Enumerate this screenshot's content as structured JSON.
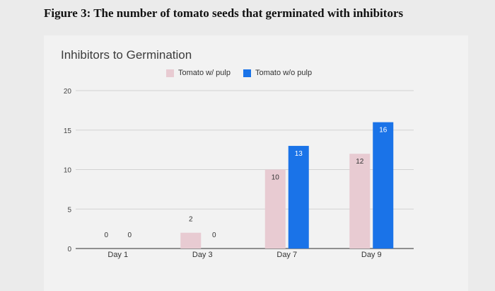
{
  "figure_caption": "Figure 3: The number of tomato seeds that germinated with inhibitors",
  "chart_data": {
    "type": "bar",
    "title": "Inhibitors to Germination",
    "xlabel": "",
    "ylabel": "",
    "categories": [
      "Day 1",
      "Day 3",
      "Day 7",
      "Day 9"
    ],
    "series": [
      {
        "name": "Tomato w/ pulp",
        "values": [
          0,
          2,
          10,
          12
        ],
        "color": "#e8cbd2"
      },
      {
        "name": "Tomato w/o pulp",
        "values": [
          0,
          0,
          13,
          16
        ],
        "color": "#1a73e8"
      }
    ],
    "ylim": [
      0,
      20
    ],
    "yticks": [
      0,
      5,
      10,
      15,
      20
    ],
    "grid": true,
    "legend_position": "top",
    "data_labels": true
  }
}
